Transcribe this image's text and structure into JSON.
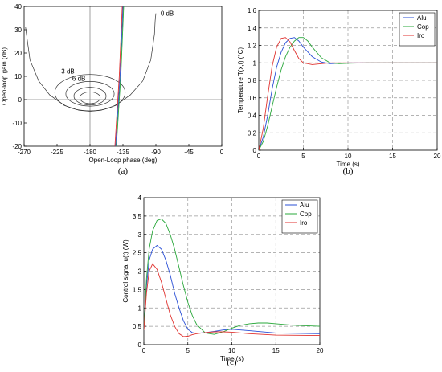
{
  "chart_data": [
    {
      "type": "line",
      "caption": "(a)",
      "xlabel": "Open-Loop phase (deg)",
      "ylabel": "Open-loop gain (dB)",
      "xlim": [
        -270,
        0
      ],
      "ylim": [
        -20,
        40
      ],
      "xticks": [
        -270,
        -225,
        -180,
        -135,
        -90,
        -45,
        0
      ],
      "yticks": [
        -20,
        -10,
        0,
        10,
        20,
        30,
        40
      ],
      "grid": "reference lines at -180 deg and 0 dB",
      "contours": [
        {
          "name": "0 dB",
          "x": [
            -268,
            -262,
            -250,
            -235,
            -215,
            -195,
            -180,
            -165,
            -145,
            -125,
            -108,
            -97,
            -92,
            -91,
            -90
          ],
          "y": [
            31,
            17,
            8,
            2,
            -2.5,
            -4.6,
            -5,
            -4.6,
            -2.5,
            2,
            8,
            17,
            28,
            34,
            37
          ]
        },
        {
          "name": "3 dB",
          "loop": true,
          "cx": -180,
          "cy": 3,
          "rx": 48,
          "ry": 7.8
        },
        {
          "name": "6 dB",
          "loop": true,
          "cx": -180,
          "cy": 2.5,
          "rx": 33,
          "ry": 5.3
        }
      ],
      "extra_loops": [
        {
          "cx": -180,
          "cy": 1.5,
          "rx": 22,
          "ry": 3.8
        },
        {
          "cx": -180,
          "cy": 0.8,
          "rx": 14,
          "ry": 2.5
        }
      ],
      "series": [
        {
          "color": "#2a4fd6",
          "x": [
            -145,
            -143,
            -141,
            -139,
            -137,
            -135
          ],
          "y": [
            -20,
            -10,
            0,
            10,
            25,
            40
          ]
        },
        {
          "color": "#2aa83b",
          "x": [
            -144,
            -142,
            -140,
            -138,
            -136,
            -134
          ],
          "y": [
            -20,
            -10,
            0,
            10,
            25,
            40
          ]
        },
        {
          "color": "#e0322f",
          "x": [
            -146,
            -144,
            -142,
            -140,
            -138,
            -136
          ],
          "y": [
            -20,
            -10,
            0,
            10,
            25,
            40
          ]
        }
      ]
    },
    {
      "type": "line",
      "caption": "(b)",
      "xlabel": "Time (s)",
      "ylabel": "Temperature T(x,t) (°C)",
      "xlim": [
        0,
        20
      ],
      "ylim": [
        0,
        1.6
      ],
      "xticks": [
        0,
        5,
        10,
        15,
        20
      ],
      "yticks": [
        0,
        0.2,
        0.4,
        0.6,
        0.8,
        1,
        1.2,
        1.4,
        1.6
      ],
      "grid": true,
      "legend_position": "top-right",
      "series": [
        {
          "name": "Alu",
          "color": "#2a4fd6",
          "x": [
            0,
            0.5,
            1,
            1.5,
            2,
            2.5,
            3,
            3.5,
            4,
            4.5,
            5,
            6,
            7,
            8,
            9,
            10,
            12,
            15,
            20
          ],
          "y": [
            0,
            0.15,
            0.4,
            0.7,
            0.95,
            1.12,
            1.23,
            1.28,
            1.29,
            1.25,
            1.18,
            1.07,
            1.01,
            0.99,
            0.995,
            1.0,
            1.0,
            1.0,
            1.0
          ]
        },
        {
          "name": "Cop",
          "color": "#2aa83b",
          "x": [
            0,
            0.5,
            1,
            1.5,
            2,
            2.5,
            3,
            3.5,
            4,
            4.5,
            5,
            5.5,
            6,
            7,
            8,
            9,
            10,
            12,
            15,
            20
          ],
          "y": [
            0,
            0.1,
            0.28,
            0.5,
            0.72,
            0.92,
            1.07,
            1.18,
            1.25,
            1.29,
            1.29,
            1.25,
            1.18,
            1.06,
            1.0,
            0.99,
            0.995,
            1.0,
            1.0,
            1.0
          ]
        },
        {
          "name": "Iro",
          "color": "#e0322f",
          "x": [
            0,
            0.5,
            1,
            1.5,
            2,
            2.5,
            3,
            3.5,
            4,
            4.5,
            5,
            6,
            7,
            8,
            10,
            15,
            20
          ],
          "y": [
            0,
            0.25,
            0.62,
            0.96,
            1.18,
            1.28,
            1.29,
            1.24,
            1.14,
            1.05,
            1.0,
            0.98,
            0.99,
            1.0,
            1.0,
            1.0,
            1.0
          ]
        }
      ]
    },
    {
      "type": "line",
      "caption": "(c)",
      "xlabel": "Time (s)",
      "ylabel": "Control signal u(t) (W)",
      "xlim": [
        0,
        20
      ],
      "ylim": [
        0,
        4
      ],
      "xticks": [
        0,
        5,
        10,
        15,
        20
      ],
      "yticks": [
        0,
        0.5,
        1,
        1.5,
        2,
        2.5,
        3,
        3.5,
        4
      ],
      "grid": true,
      "legend_position": "top-right",
      "series": [
        {
          "name": "Alu",
          "color": "#2a4fd6",
          "x": [
            0,
            0.3,
            0.6,
            1,
            1.5,
            2,
            2.5,
            3,
            3.5,
            4,
            4.5,
            5,
            5.5,
            6,
            7,
            8,
            9,
            10,
            12,
            15,
            20
          ],
          "y": [
            0.4,
            1.6,
            2.3,
            2.6,
            2.7,
            2.6,
            2.3,
            1.9,
            1.4,
            1.0,
            0.65,
            0.42,
            0.33,
            0.31,
            0.33,
            0.36,
            0.4,
            0.42,
            0.38,
            0.32,
            0.3
          ]
        },
        {
          "name": "Cop",
          "color": "#2aa83b",
          "x": [
            0,
            0.3,
            0.6,
            1,
            1.5,
            2,
            2.5,
            3,
            3.5,
            4,
            4.5,
            5,
            5.5,
            6,
            7,
            8,
            9,
            10,
            11,
            12,
            13,
            14,
            15,
            17,
            20
          ],
          "y": [
            0.4,
            1.8,
            2.6,
            3.1,
            3.38,
            3.42,
            3.3,
            3.0,
            2.6,
            2.1,
            1.6,
            1.15,
            0.8,
            0.55,
            0.32,
            0.28,
            0.35,
            0.45,
            0.53,
            0.57,
            0.59,
            0.59,
            0.57,
            0.53,
            0.5
          ]
        },
        {
          "name": "Iro",
          "color": "#e0322f",
          "x": [
            0,
            0.3,
            0.6,
            1,
            1.5,
            2,
            2.5,
            3,
            3.5,
            4,
            4.5,
            5,
            5.5,
            6,
            7,
            8,
            9,
            10,
            12,
            15,
            20
          ],
          "y": [
            0.4,
            1.4,
            2.0,
            2.2,
            2.05,
            1.7,
            1.25,
            0.82,
            0.5,
            0.3,
            0.22,
            0.23,
            0.27,
            0.3,
            0.33,
            0.35,
            0.35,
            0.34,
            0.3,
            0.26,
            0.25
          ]
        }
      ]
    }
  ]
}
